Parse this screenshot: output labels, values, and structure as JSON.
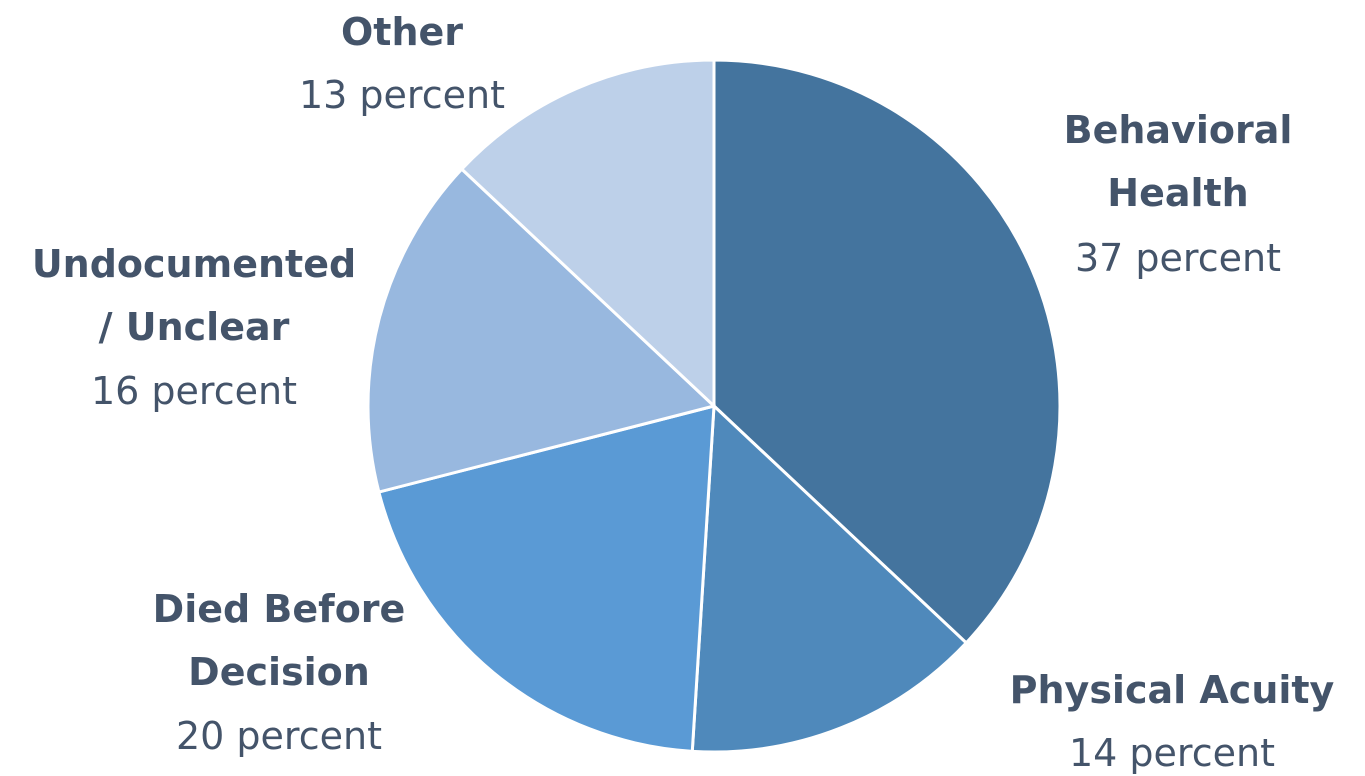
{
  "chart_data": {
    "type": "pie",
    "title": "",
    "start_angle": "12 o'clock",
    "direction": "clockwise",
    "slices": [
      {
        "name_lines": [
          "Behavioral",
          "Health"
        ],
        "value_label": "37 percent",
        "value": 37,
        "color": "#44749e"
      },
      {
        "name_lines": [
          "Physical Acuity"
        ],
        "value_label": "14 percent",
        "value": 14,
        "color": "#4f89bb"
      },
      {
        "name_lines": [
          "Died Before",
          "Decision"
        ],
        "value_label": "20 percent",
        "value": 20,
        "color": "#5a9ad5"
      },
      {
        "name_lines": [
          "Undocumented",
          "/ Unclear"
        ],
        "value_label": "16 percent",
        "value": 16,
        "color": "#98b8df"
      },
      {
        "name_lines": [
          "Other"
        ],
        "value_label": "13 percent",
        "value": 13,
        "color": "#bdd0e9"
      }
    ],
    "legend": "none",
    "labels": "outside"
  }
}
